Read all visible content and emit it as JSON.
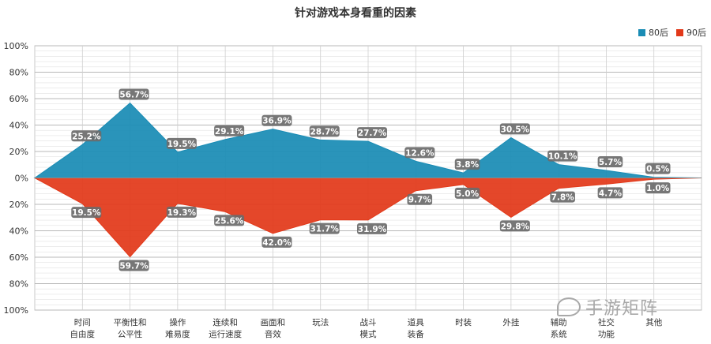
{
  "chart_data": {
    "type": "area",
    "title": "针对游戏本身看重的因素",
    "legend_position": "top-right",
    "categories": [
      [
        "时间",
        "自由度"
      ],
      [
        "平衡性和",
        "公平性"
      ],
      [
        "操作",
        "难易度"
      ],
      [
        "连续和",
        "运行速度"
      ],
      [
        "画面和",
        "音效"
      ],
      [
        "玩法"
      ],
      [
        "战斗",
        "模式"
      ],
      [
        "道具",
        "装备"
      ],
      [
        "时装"
      ],
      [
        "外挂"
      ],
      [
        "辅助",
        "系统"
      ],
      [
        "社交",
        "功能"
      ],
      [
        "其他"
      ]
    ],
    "series": [
      {
        "name": "80后",
        "color": "#1a8cb5",
        "direction": "up",
        "values": [
          25.2,
          56.7,
          19.5,
          29.1,
          36.9,
          28.7,
          27.7,
          12.6,
          3.8,
          30.5,
          10.1,
          5.7,
          0.5
        ],
        "labels": [
          "25.2%",
          "56.7%",
          "19.5%",
          "29.1%",
          "36.9%",
          "28.7%",
          "27.7%",
          "12.6%",
          "3.8%",
          "30.5%",
          "10.1%",
          "5.7%",
          "0.5%"
        ]
      },
      {
        "name": "90后",
        "color": "#e2391a",
        "direction": "down",
        "values": [
          19.5,
          59.7,
          19.3,
          25.6,
          42.0,
          31.7,
          31.9,
          9.7,
          5.0,
          29.8,
          7.8,
          4.7,
          1.0
        ],
        "labels": [
          "19.5%",
          "59.7%",
          "19.3%",
          "25.6%",
          "42.0%",
          "31.7%",
          "31.9%",
          "9.7%",
          "5.0%",
          "29.8%",
          "7.8%",
          "4.7%",
          "1.0%"
        ]
      }
    ],
    "y_ticks": [
      "100%",
      "80%",
      "60%",
      "40%",
      "20%",
      "0%",
      "20%",
      "40%",
      "60%",
      "80%",
      "100%"
    ],
    "ylim": [
      -100,
      100
    ],
    "grid": true
  },
  "watermark": {
    "text": "手游矩阵",
    "icon": "wechat-icon"
  }
}
